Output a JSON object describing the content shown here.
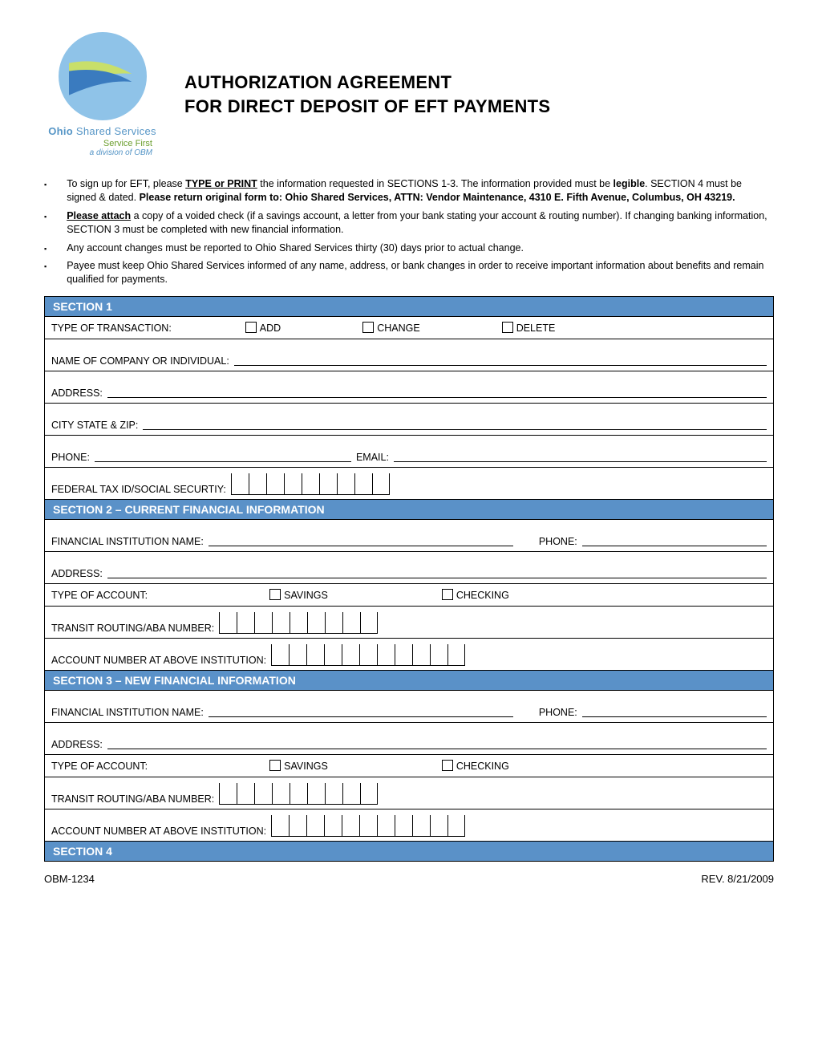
{
  "logo": {
    "org_html": "Ohio Shared Services",
    "tagline": "Service First",
    "division": "a division of OBM",
    "circle_bg": "#8fc3e8",
    "swoosh_blue": "#3a7bbf",
    "swoosh_green": "#c8df6a"
  },
  "title_line1": "AUTHORIZATION AGREEMENT",
  "title_line2": "FOR DIRECT DEPOSIT OF EFT PAYMENTS",
  "instructions": {
    "i1_a": "To sign up for EFT, please ",
    "i1_b": "TYPE or PRINT",
    "i1_c": " the information requested in SECTIONS 1-3. The information provided must be ",
    "i1_d": "legible",
    "i1_e": ". SECTION 4 must be signed & dated. ",
    "i1_f": "Please return original form to:  Ohio Shared Services, ATTN: Vendor Maintenance, 4310 E. Fifth Avenue, Columbus, OH  43219.",
    "i2_a": "Please attach",
    "i2_b": " a copy of a voided check (if a savings account, a letter from your bank stating your account & routing number). If changing banking information, SECTION 3 must be completed with new financial information.",
    "i3": "Any account changes must be reported to Ohio Shared Services thirty (30) days prior to actual change.",
    "i4": "Payee must keep Ohio Shared Services informed of any name, address, or bank changes in order to receive important information about benefits and remain qualified for payments."
  },
  "section1": {
    "header": "SECTION 1",
    "type_of_transaction": "TYPE OF TRANSACTION:",
    "add": "ADD",
    "change": "CHANGE",
    "delete": "DELETE",
    "name_label": "NAME OF COMPANY OR INDIVIDUAL:",
    "address": "ADDRESS:",
    "csz": "CITY STATE & ZIP:",
    "phone": "PHONE:",
    "email": "EMAIL:",
    "fed_tax": "FEDERAL TAX ID/SOCIAL SECURTIY:",
    "tax_digits": 9
  },
  "section2": {
    "header": "SECTION 2 – CURRENT FINANCIAL INFORMATION",
    "fin_name": "FINANCIAL INSTITUTION NAME:",
    "phone": "PHONE:",
    "address": "ADDRESS:",
    "type_of_account": "TYPE OF ACCOUNT:",
    "savings": "SAVINGS",
    "checking": "CHECKING",
    "routing": "TRANSIT ROUTING/ABA NUMBER:",
    "routing_digits": 9,
    "account": "ACCOUNT NUMBER AT ABOVE INSTITUTION:",
    "account_digits": 11
  },
  "section3": {
    "header": "SECTION 3 – NEW FINANCIAL INFORMATION",
    "fin_name": "FINANCIAL INSTITUTION NAME:",
    "phone": "PHONE:",
    "address": "ADDRESS:",
    "type_of_account": "TYPE OF ACCOUNT:",
    "savings": "SAVINGS",
    "checking": "CHECKING",
    "routing": "TRANSIT ROUTING/ABA NUMBER:",
    "routing_digits": 9,
    "account": "ACCOUNT NUMBER AT ABOVE INSTITUTION:",
    "account_digits": 11
  },
  "section4": {
    "header": "SECTION 4"
  },
  "footer": {
    "form_id": "OBM-1234",
    "rev": "REV. 8/21/2009"
  }
}
